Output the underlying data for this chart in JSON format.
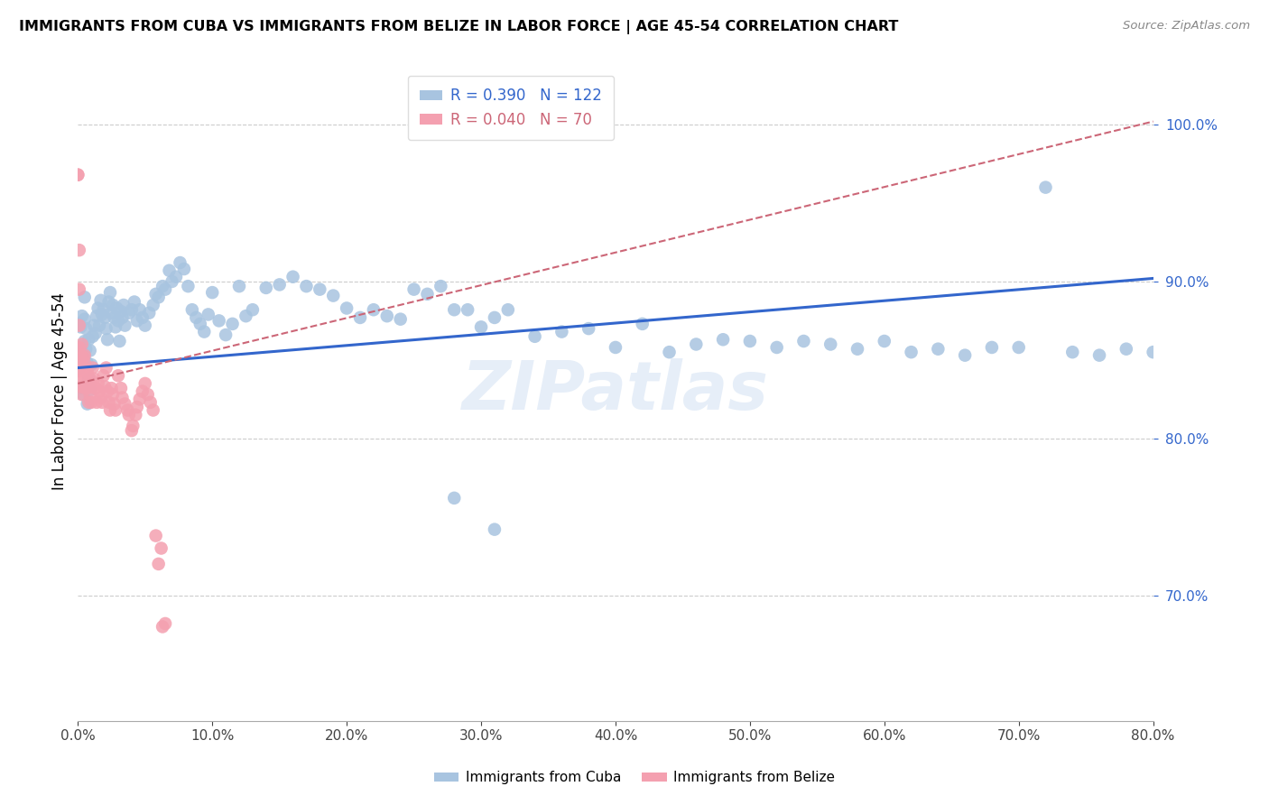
{
  "title": "IMMIGRANTS FROM CUBA VS IMMIGRANTS FROM BELIZE IN LABOR FORCE | AGE 45-54 CORRELATION CHART",
  "source": "Source: ZipAtlas.com",
  "ylabel": "In Labor Force | Age 45-54",
  "legend_cuba": "Immigrants from Cuba",
  "legend_belize": "Immigrants from Belize",
  "R_cuba": 0.39,
  "N_cuba": 122,
  "R_belize": 0.04,
  "N_belize": 70,
  "color_cuba": "#a8c4e0",
  "color_belize": "#f4a0b0",
  "line_cuba": "#3366cc",
  "line_belize": "#cc6677",
  "watermark": "ZIPatlas",
  "xlim": [
    0.0,
    0.8
  ],
  "ylim": [
    0.62,
    1.04
  ],
  "yticks": [
    0.7,
    0.8,
    0.9,
    1.0
  ],
  "background": "#ffffff",
  "cuba_x": [
    0.001,
    0.001,
    0.002,
    0.002,
    0.003,
    0.003,
    0.003,
    0.004,
    0.004,
    0.005,
    0.005,
    0.005,
    0.006,
    0.006,
    0.007,
    0.007,
    0.008,
    0.008,
    0.009,
    0.009,
    0.01,
    0.011,
    0.012,
    0.013,
    0.014,
    0.015,
    0.016,
    0.017,
    0.018,
    0.019,
    0.02,
    0.021,
    0.022,
    0.023,
    0.024,
    0.025,
    0.026,
    0.027,
    0.028,
    0.029,
    0.03,
    0.031,
    0.032,
    0.033,
    0.034,
    0.035,
    0.038,
    0.04,
    0.042,
    0.044,
    0.046,
    0.048,
    0.05,
    0.053,
    0.056,
    0.058,
    0.06,
    0.063,
    0.065,
    0.068,
    0.07,
    0.073,
    0.076,
    0.079,
    0.082,
    0.085,
    0.088,
    0.091,
    0.094,
    0.097,
    0.1,
    0.105,
    0.11,
    0.115,
    0.12,
    0.125,
    0.13,
    0.14,
    0.15,
    0.16,
    0.17,
    0.18,
    0.19,
    0.2,
    0.21,
    0.22,
    0.23,
    0.24,
    0.25,
    0.26,
    0.27,
    0.28,
    0.29,
    0.3,
    0.31,
    0.32,
    0.34,
    0.36,
    0.38,
    0.4,
    0.42,
    0.44,
    0.46,
    0.48,
    0.5,
    0.52,
    0.54,
    0.56,
    0.58,
    0.6,
    0.62,
    0.64,
    0.66,
    0.68,
    0.7,
    0.72,
    0.74,
    0.76,
    0.78,
    0.8,
    0.31,
    0.28
  ],
  "cuba_y": [
    0.845,
    0.873,
    0.858,
    0.871,
    0.832,
    0.855,
    0.878,
    0.828,
    0.853,
    0.862,
    0.876,
    0.89,
    0.857,
    0.87,
    0.822,
    0.848,
    0.838,
    0.863,
    0.831,
    0.856,
    0.847,
    0.865,
    0.872,
    0.867,
    0.878,
    0.883,
    0.872,
    0.888,
    0.879,
    0.882,
    0.877,
    0.87,
    0.863,
    0.887,
    0.893,
    0.88,
    0.885,
    0.877,
    0.871,
    0.883,
    0.875,
    0.862,
    0.881,
    0.877,
    0.885,
    0.872,
    0.88,
    0.882,
    0.887,
    0.875,
    0.882,
    0.877,
    0.872,
    0.88,
    0.885,
    0.892,
    0.89,
    0.897,
    0.895,
    0.907,
    0.9,
    0.903,
    0.912,
    0.908,
    0.897,
    0.882,
    0.877,
    0.873,
    0.868,
    0.879,
    0.893,
    0.875,
    0.866,
    0.873,
    0.897,
    0.878,
    0.882,
    0.896,
    0.898,
    0.903,
    0.897,
    0.895,
    0.891,
    0.883,
    0.877,
    0.882,
    0.878,
    0.876,
    0.895,
    0.892,
    0.897,
    0.882,
    0.882,
    0.871,
    0.877,
    0.882,
    0.865,
    0.868,
    0.87,
    0.858,
    0.873,
    0.855,
    0.86,
    0.863,
    0.862,
    0.858,
    0.862,
    0.86,
    0.857,
    0.862,
    0.855,
    0.857,
    0.853,
    0.858,
    0.858,
    0.96,
    0.855,
    0.853,
    0.857,
    0.855,
    0.742,
    0.762
  ],
  "belize_x": [
    0.0,
    0.0,
    0.001,
    0.001,
    0.001,
    0.001,
    0.001,
    0.002,
    0.002,
    0.002,
    0.002,
    0.003,
    0.003,
    0.003,
    0.003,
    0.004,
    0.004,
    0.004,
    0.005,
    0.005,
    0.005,
    0.006,
    0.006,
    0.007,
    0.007,
    0.008,
    0.008,
    0.009,
    0.009,
    0.01,
    0.01,
    0.011,
    0.012,
    0.013,
    0.014,
    0.015,
    0.016,
    0.017,
    0.018,
    0.019,
    0.02,
    0.021,
    0.022,
    0.023,
    0.024,
    0.025,
    0.026,
    0.027,
    0.028,
    0.03,
    0.032,
    0.033,
    0.035,
    0.037,
    0.038,
    0.04,
    0.041,
    0.043,
    0.044,
    0.046,
    0.048,
    0.05,
    0.052,
    0.054,
    0.056,
    0.058,
    0.06,
    0.062,
    0.063,
    0.065
  ],
  "belize_y": [
    0.968,
    0.968,
    0.92,
    0.895,
    0.872,
    0.858,
    0.843,
    0.853,
    0.847,
    0.843,
    0.833,
    0.86,
    0.848,
    0.838,
    0.828,
    0.852,
    0.843,
    0.833,
    0.853,
    0.838,
    0.848,
    0.843,
    0.832,
    0.843,
    0.832,
    0.835,
    0.823,
    0.838,
    0.828,
    0.833,
    0.823,
    0.845,
    0.838,
    0.832,
    0.823,
    0.835,
    0.83,
    0.826,
    0.823,
    0.84,
    0.833,
    0.845,
    0.83,
    0.823,
    0.818,
    0.832,
    0.828,
    0.822,
    0.818,
    0.84,
    0.832,
    0.826,
    0.822,
    0.818,
    0.815,
    0.805,
    0.808,
    0.815,
    0.82,
    0.825,
    0.83,
    0.835,
    0.828,
    0.823,
    0.818,
    0.738,
    0.72,
    0.73,
    0.68,
    0.682
  ]
}
